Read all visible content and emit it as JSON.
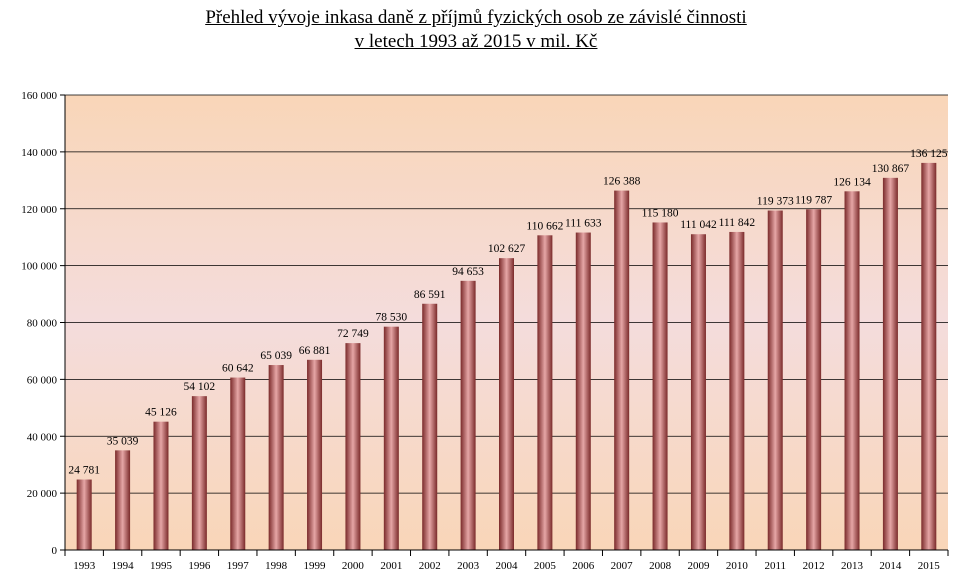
{
  "chart_data": {
    "type": "bar",
    "title_lines": [
      "Přehled vývoje inkasa daně z příjmů fyzických osob ze závislé činnosti",
      "v letech 1993 až 2015 v mil. Kč"
    ],
    "categories": [
      "1993",
      "1994",
      "1995",
      "1996",
      "1997",
      "1998",
      "1999",
      "2000",
      "2001",
      "2002",
      "2003",
      "2004",
      "2005",
      "2006",
      "2007",
      "2008",
      "2009",
      "2010",
      "2011",
      "2012",
      "2013",
      "2014",
      "2015"
    ],
    "values": [
      24781,
      35039,
      45126,
      54102,
      60642,
      65039,
      66881,
      72749,
      78530,
      86591,
      94653,
      102627,
      110662,
      111633,
      126388,
      115180,
      111042,
      111842,
      119373,
      119787,
      126134,
      130867,
      136125
    ],
    "value_labels": [
      "24 781",
      "35 039",
      "45 126",
      "54 102",
      "60 642",
      "65 039",
      "66 881",
      "72 749",
      "78 530",
      "86 591",
      "94 653",
      "102 627",
      "110 662",
      "111 633",
      "126 388",
      "115 180",
      "111 042",
      "111 842",
      "119 373",
      "119 787",
      "126 134",
      "130 867",
      "136 125"
    ],
    "ylim": [
      0,
      160000
    ],
    "yticks": [
      0,
      20000,
      40000,
      60000,
      80000,
      100000,
      120000,
      140000,
      160000
    ],
    "ytick_labels": [
      "0",
      "20 000",
      "40 000",
      "60 000",
      "80 000",
      "100 000",
      "120 000",
      "140 000",
      "160 000"
    ],
    "grid": true,
    "legend": "none",
    "colors": {
      "bar_edge": "#7a2a2a",
      "bar_mid": "#e6a6a6",
      "bg_top": "#f9d6b8",
      "bg_mid": "#f4dcdc",
      "bg_bottom": "#f9d6b8"
    }
  }
}
